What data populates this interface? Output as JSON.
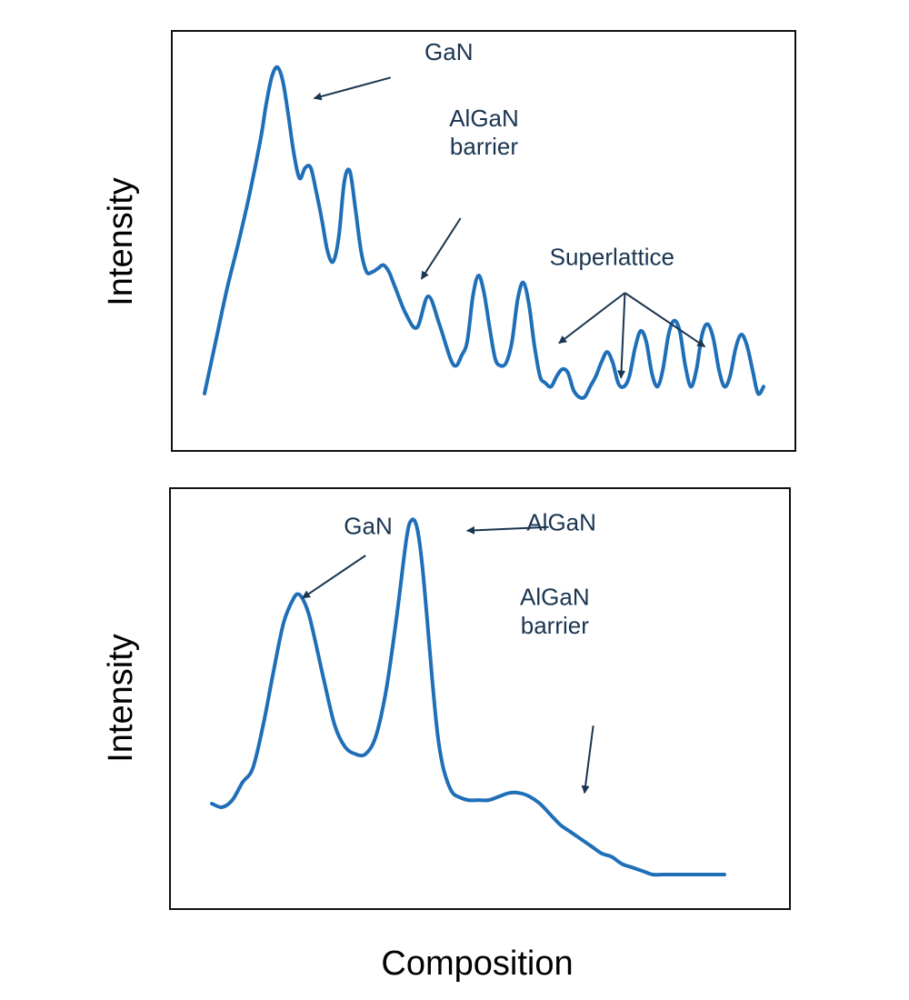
{
  "colors": {
    "curve": "#1f6fb8",
    "annotation": "#1a3550",
    "frame": "#111111"
  },
  "chart_data": [
    {
      "type": "line",
      "id": "top",
      "xlabel": "",
      "ylabel": "Intensity",
      "xlim": [
        0,
        100
      ],
      "ylim": [
        0,
        100
      ],
      "grid": false,
      "series": [
        {
          "x": [
            0,
            2,
            4,
            6,
            8,
            10,
            11,
            12,
            13,
            14,
            15,
            16,
            17,
            18,
            19,
            20,
            21,
            22,
            23,
            24,
            25,
            26,
            27,
            28,
            29,
            30,
            31,
            32,
            33,
            34,
            36,
            38,
            40,
            42,
            44,
            45,
            46,
            47,
            48,
            49,
            50,
            51,
            52,
            53,
            54,
            55,
            56,
            57,
            58,
            59,
            60,
            61,
            62,
            63,
            64,
            65,
            66,
            67,
            68,
            69,
            70,
            71,
            72,
            73,
            74,
            75,
            76,
            77,
            78,
            79,
            80,
            81,
            82,
            83,
            84,
            85,
            86,
            87,
            88,
            89,
            90,
            91,
            92,
            93,
            94,
            95,
            96,
            97,
            98,
            99,
            100
          ],
          "y": [
            5,
            20,
            35,
            48,
            62,
            78,
            88,
            96,
            99,
            95,
            85,
            74,
            67,
            70,
            70,
            63,
            55,
            46,
            43,
            50,
            66,
            69,
            58,
            46,
            40,
            40,
            41,
            42,
            40,
            36,
            28,
            24,
            33,
            25,
            15,
            13,
            16,
            20,
            33,
            39,
            34,
            24,
            15,
            13,
            14,
            20,
            32,
            37,
            31,
            19,
            10,
            8,
            7,
            10,
            12,
            11,
            6,
            4,
            4,
            7,
            10,
            14,
            17,
            14,
            8,
            7,
            10,
            18,
            23,
            20,
            11,
            7,
            12,
            22,
            26,
            23,
            13,
            7,
            12,
            22,
            25,
            21,
            12,
            7,
            10,
            18,
            22,
            19,
            12,
            5,
            7
          ]
        }
      ],
      "annotations": [
        {
          "text": [
            "GaN"
          ],
          "label_x": 43.7,
          "label_y": 101,
          "arrow_from": [
            33.3,
            96
          ],
          "arrow_to": [
            19.6,
            90
          ]
        },
        {
          "text": [
            "AlGaN",
            "barrier"
          ],
          "label_x": 50,
          "label_y": 82,
          "arrow_from": [
            45.8,
            55.5
          ],
          "arrow_to": [
            38.8,
            38
          ]
        },
        {
          "text": [
            "Superlattice"
          ],
          "label_x": 72.9,
          "label_y": 42,
          "arrow_from": [
            75.2,
            34
          ],
          "arrow_to": [
            63.4,
            19.5
          ],
          "extra_arrows": [
            [
              [
                75.2,
                34
              ],
              [
                74.5,
                9.5
              ]
            ],
            [
              [
                75.2,
                34
              ],
              [
                89.5,
                18.5
              ]
            ]
          ]
        }
      ]
    },
    {
      "type": "line",
      "id": "bottom",
      "xlabel": "Composition",
      "ylabel": "Intensity",
      "xlim": [
        0,
        100
      ],
      "ylim": [
        0,
        100
      ],
      "grid": false,
      "series": [
        {
          "x": [
            0,
            2,
            4,
            6,
            8,
            10,
            12,
            14,
            16,
            17,
            18,
            19,
            20,
            22,
            24,
            26,
            28,
            30,
            32,
            34,
            36,
            38,
            39,
            40,
            41,
            42,
            43,
            44,
            45,
            46,
            47,
            48,
            50,
            52,
            54,
            56,
            58,
            60,
            62,
            64,
            66,
            68,
            70,
            72,
            74,
            76,
            78,
            80,
            82,
            84,
            86,
            88,
            90,
            92,
            94,
            96,
            98,
            100
          ],
          "y": [
            20,
            19,
            21,
            26,
            30,
            42,
            57,
            71,
            78,
            79,
            77,
            73,
            67,
            54,
            42,
            36,
            34,
            34,
            39,
            52,
            72,
            95,
            100,
            98,
            88,
            72,
            55,
            40,
            31,
            26,
            23,
            22,
            21,
            21,
            21,
            22,
            23,
            23,
            22,
            20,
            17,
            14,
            12,
            10,
            8,
            6,
            5,
            3,
            2,
            1,
            0,
            0,
            0,
            0,
            0,
            0,
            0,
            0
          ]
        }
      ],
      "annotations": [
        {
          "text": [
            "GaN"
          ],
          "label_x": 30.5,
          "label_y": 96,
          "arrow_from": [
            30,
            90
          ],
          "arrow_to": [
            17.7,
            78
          ]
        },
        {
          "text": [
            "AlGaN"
          ],
          "label_x": 68.2,
          "label_y": 97,
          "arrow_from": [
            65.7,
            98
          ],
          "arrow_to": [
            49.8,
            97
          ]
        },
        {
          "text": [
            "AlGaN",
            "barrier"
          ],
          "label_x": 66.9,
          "label_y": 76,
          "arrow_from": [
            74.4,
            42
          ],
          "arrow_to": [
            72.7,
            23
          ]
        }
      ]
    }
  ]
}
